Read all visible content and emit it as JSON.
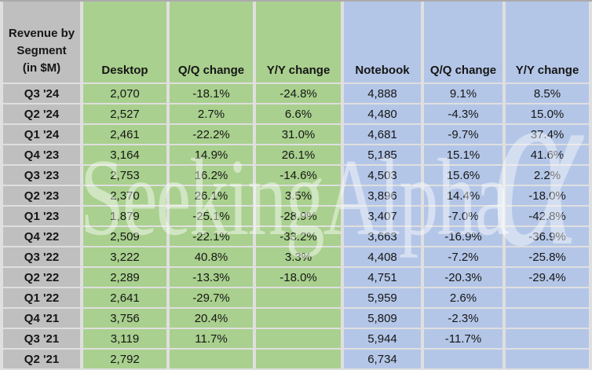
{
  "chart_data": {
    "type": "table",
    "title": "Revenue by Segment (in $M)",
    "corner_lines": [
      "Revenue by",
      "Segment",
      "(in $M)"
    ],
    "column_headers": [
      "Desktop",
      "Q/Q change",
      "Y/Y change",
      "Notebook",
      "Q/Q change",
      "Y/Y change"
    ],
    "rows": [
      [
        "Q3 '24",
        "2,070",
        "-18.1%",
        "-24.8%",
        "4,888",
        "9.1%",
        "8.5%"
      ],
      [
        "Q2 '24",
        "2,527",
        "2.7%",
        "6.6%",
        "4,480",
        "-4.3%",
        "15.0%"
      ],
      [
        "Q1 '24",
        "2,461",
        "-22.2%",
        "31.0%",
        "4,681",
        "-9.7%",
        "37.4%"
      ],
      [
        "Q4 '23",
        "3,164",
        "14.9%",
        "26.1%",
        "5,185",
        "15.1%",
        "41.6%"
      ],
      [
        "Q3 '23",
        "2,753",
        "16.2%",
        "-14.6%",
        "4,503",
        "15.6%",
        "2.2%"
      ],
      [
        "Q2 '23",
        "2,370",
        "26.1%",
        "3.5%",
        "3,896",
        "14.4%",
        "-18.0%"
      ],
      [
        "Q1 '23",
        "1,879",
        "-25.1%",
        "-28.9%",
        "3,407",
        "-7.0%",
        "-42.8%"
      ],
      [
        "Q4 '22",
        "2,509",
        "-22.1%",
        "-33.2%",
        "3,663",
        "-16.9%",
        "-36.9%"
      ],
      [
        "Q3 '22",
        "3,222",
        "40.8%",
        "3.3%",
        "4,408",
        "-7.2%",
        "-25.8%"
      ],
      [
        "Q2 '22",
        "2,289",
        "-13.3%",
        "-18.0%",
        "4,751",
        "-20.3%",
        "-29.4%"
      ],
      [
        "Q1 '22",
        "2,641",
        "-29.7%",
        "",
        "5,959",
        "2.6%",
        ""
      ],
      [
        "Q4 '21",
        "3,756",
        "20.4%",
        "",
        "5,809",
        "-2.3%",
        ""
      ],
      [
        "Q3 '21",
        "3,119",
        "11.7%",
        "",
        "5,944",
        "-11.7%",
        ""
      ],
      [
        "Q2 '21",
        "2,792",
        "",
        "",
        "6,734",
        "",
        ""
      ]
    ]
  },
  "watermark": {
    "text": "SeekingAlpha",
    "alpha_glyph": "α"
  },
  "colors": {
    "desktop_fill": "#A9D08E",
    "notebook_fill": "#B4C6E7",
    "label_fill": "#BFBFBF",
    "gridline": "#DFDFDF"
  }
}
